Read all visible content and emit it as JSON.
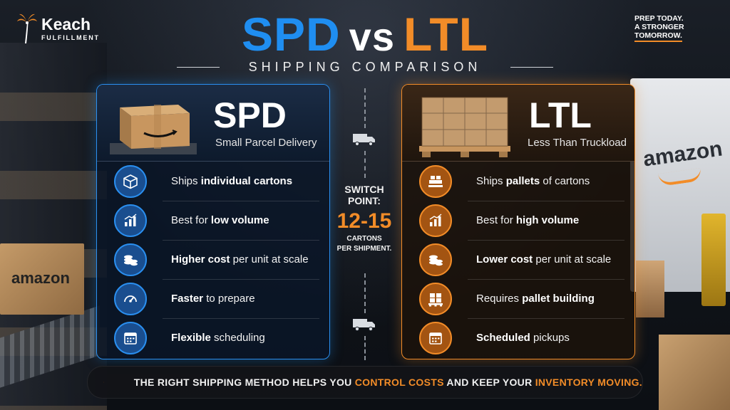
{
  "brand": {
    "name": "Keach",
    "sub": "FULFILLMENT"
  },
  "tagline": {
    "line1": "PREP TODAY.",
    "line2": "A STRONGER",
    "line3": "TOMORROW."
  },
  "title": {
    "left": "SPD",
    "vs": "vs",
    "right": "LTL",
    "subtitle": "SHIPPING COMPARISON"
  },
  "spd": {
    "abbr": "SPD",
    "full": "Small Parcel Delivery",
    "rows": [
      {
        "icon": "box-icon",
        "pre": "Ships ",
        "bold": "individual cartons",
        "post": ""
      },
      {
        "icon": "bar-chart-icon",
        "pre": "Best for ",
        "bold": "low volume",
        "post": ""
      },
      {
        "icon": "coins-icon",
        "pre": "",
        "bold": "Higher cost",
        "post": " per unit at scale"
      },
      {
        "icon": "speedometer-icon",
        "pre": "",
        "bold": "Faster",
        "post": " to prepare"
      },
      {
        "icon": "calendar-icon",
        "pre": "",
        "bold": "Flexible",
        "post": " scheduling"
      }
    ]
  },
  "ltl": {
    "abbr": "LTL",
    "full": "Less Than Truckload",
    "rows": [
      {
        "icon": "stacked-boxes-icon",
        "pre": "Ships ",
        "bold": "pallets",
        "post": " of cartons"
      },
      {
        "icon": "bar-chart-icon",
        "pre": "Best for ",
        "bold": "high volume",
        "post": ""
      },
      {
        "icon": "coins-icon",
        "pre": "",
        "bold": "Lower cost",
        "post": " per unit at scale"
      },
      {
        "icon": "pallet-icon",
        "pre": "Requires ",
        "bold": "pallet building",
        "post": ""
      },
      {
        "icon": "calendar-icon",
        "pre": "",
        "bold": "Scheduled",
        "post": " pickups"
      }
    ]
  },
  "switch": {
    "label1": "SWITCH",
    "label2": "POINT:",
    "value": "12-15",
    "unit1": "CARTONS",
    "unit2": "PER SHIPMENT."
  },
  "bottom": {
    "part1": "THE RIGHT SHIPPING METHOD HELPS YOU ",
    "hl1": "CONTROL COSTS",
    "part2": " AND KEEP YOUR ",
    "hl2": "INVENTORY MOVING."
  },
  "background_text": {
    "box_left": "amazon",
    "trailer": "amazon"
  },
  "colors": {
    "spd_blue": "#1f8ef1",
    "ltl_orange": "#f28c28",
    "background": "#11151b"
  }
}
